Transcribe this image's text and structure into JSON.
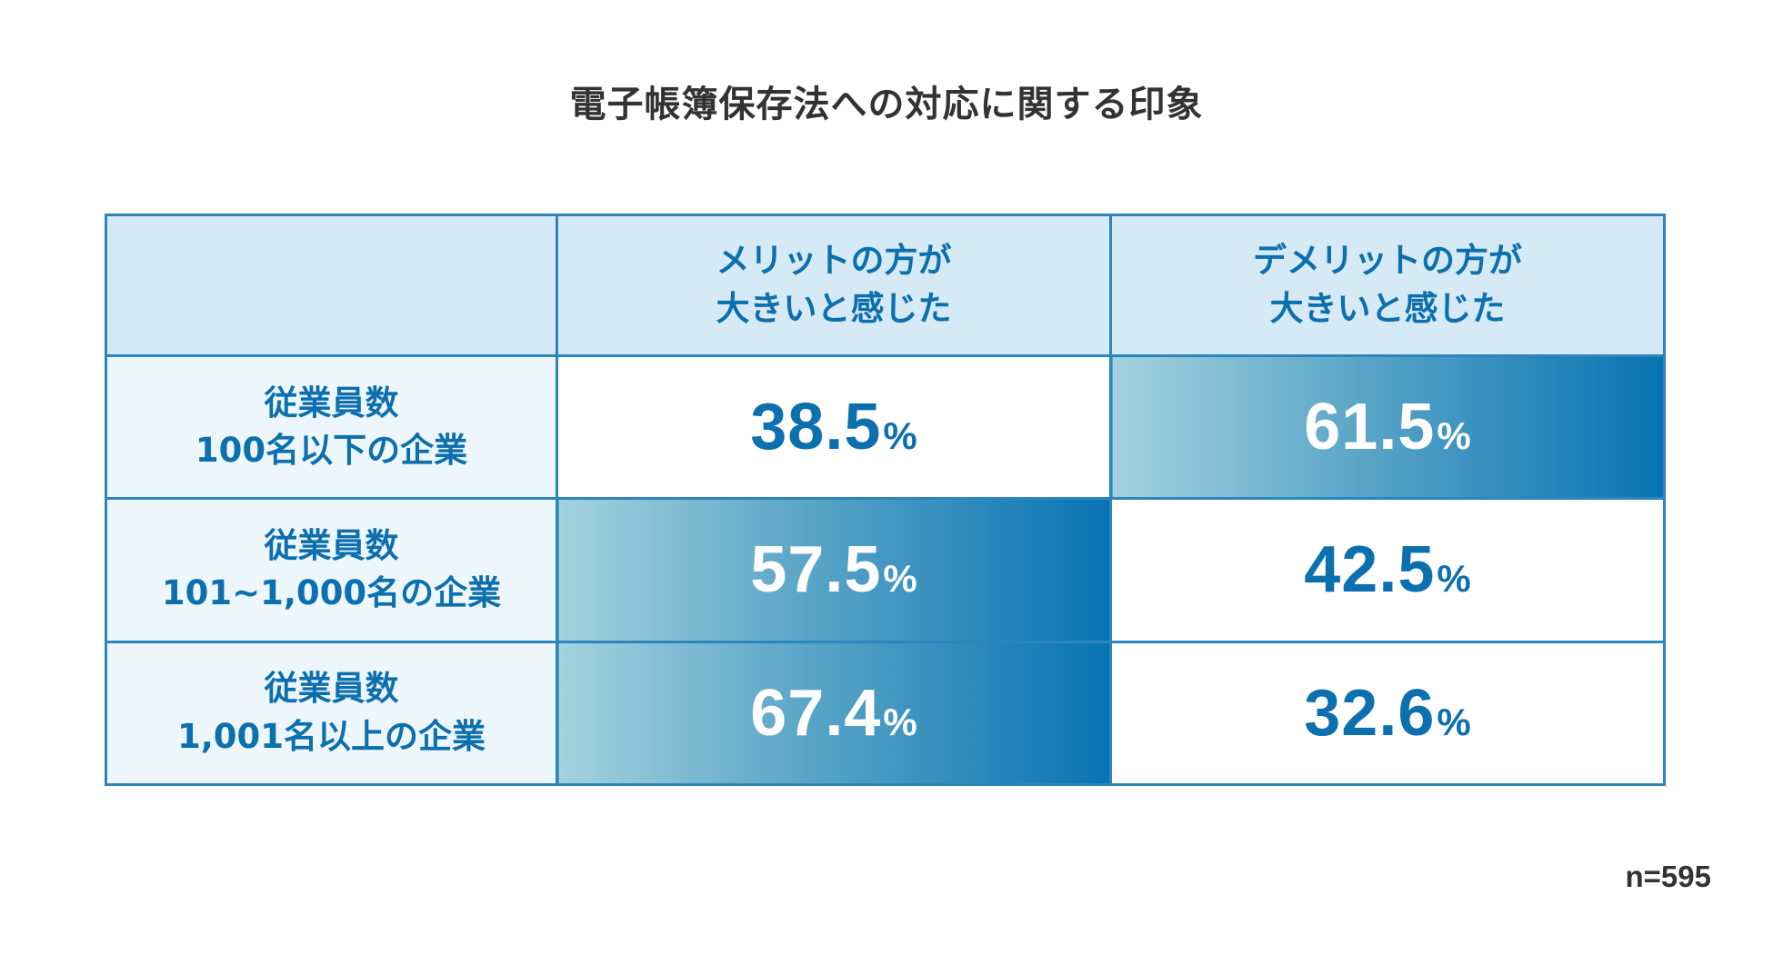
{
  "title": "電子帳簿保存法への対応に関する印象",
  "sample_size": "n=595",
  "chart_data": {
    "type": "table",
    "title": "電子帳簿保存法への対応に関する印象",
    "columns": [
      {
        "line1": "メリットの方が",
        "line2": "大きいと感じた"
      },
      {
        "line1": "デメリットの方が",
        "line2": "大きいと感じた"
      }
    ],
    "rows": [
      {
        "label_line1": "従業員数",
        "label_line2": "100名以下の企業",
        "values": [
          38.5,
          61.5
        ],
        "display": [
          "38.5",
          "61.5"
        ],
        "highlight": 1
      },
      {
        "label_line1": "従業員数",
        "label_line2": "101~1,000名の企業",
        "values": [
          57.5,
          42.5
        ],
        "display": [
          "57.5",
          "42.5"
        ],
        "highlight": 0
      },
      {
        "label_line1": "従業員数",
        "label_line2": "1,001名以上の企業",
        "values": [
          67.4,
          32.6
        ],
        "display": [
          "67.4",
          "32.6"
        ],
        "highlight": 0
      }
    ],
    "unit": "%",
    "colors": {
      "border": "#2c86bd",
      "text": "#0c6fae",
      "header_bg": "#d5eaf5",
      "label_bg": "#edf6fb",
      "gradient_start": "#a4d2de",
      "gradient_end": "#0873b3"
    }
  }
}
